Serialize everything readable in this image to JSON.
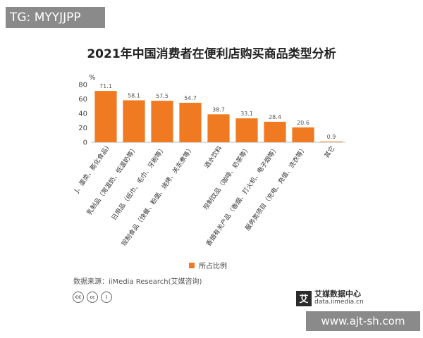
{
  "tag": "TG: MYYJJPP",
  "chart_data": {
    "type": "bar",
    "title": "2021年中国消费者在便利店购买商品类型分析",
    "ylabel": "%",
    "ylim": [
      0,
      80
    ],
    "yticks": [
      0,
      20,
      40,
      60,
      80
    ],
    "categories": [
      "J、蛋类、膨化食品)",
      "乳制品（常温奶、低温奶等）",
      "日用品（纸巾、毛巾、牙刷等）",
      "现制食品（快餐、粉面、烧烤、关东煮等）",
      "酒水饮料",
      "现制饮品（咖啡、奶茶等）",
      "香烟有关产品（香烟、打火机、电子烟等）",
      "服务类项目（充电、充值、洗衣等）",
      "其它"
    ],
    "series": [
      {
        "name": "所占比例",
        "values": [
          71.1,
          58.1,
          57.5,
          54.7,
          38.7,
          33.1,
          28.4,
          20.6,
          0.9
        ]
      }
    ],
    "value_labels": [
      "71.1",
      "58.1",
      "57.5",
      "54.7",
      "38.7",
      "33.1",
      "28.4",
      "20.6",
      "0.9"
    ],
    "bar_color": "#f07a22",
    "legend": "bottom",
    "grid": false
  },
  "legend_label": "所占比例",
  "source": "数据来源：iiMedia Research(艾媒咨询)",
  "cc_icons": [
    "CC",
    "cc",
    "i"
  ],
  "logo": {
    "mark": "艾",
    "cn": "艾媒数据中心",
    "en": "data.iimedia.cn"
  },
  "watermark": "www.ajt-sh.com"
}
